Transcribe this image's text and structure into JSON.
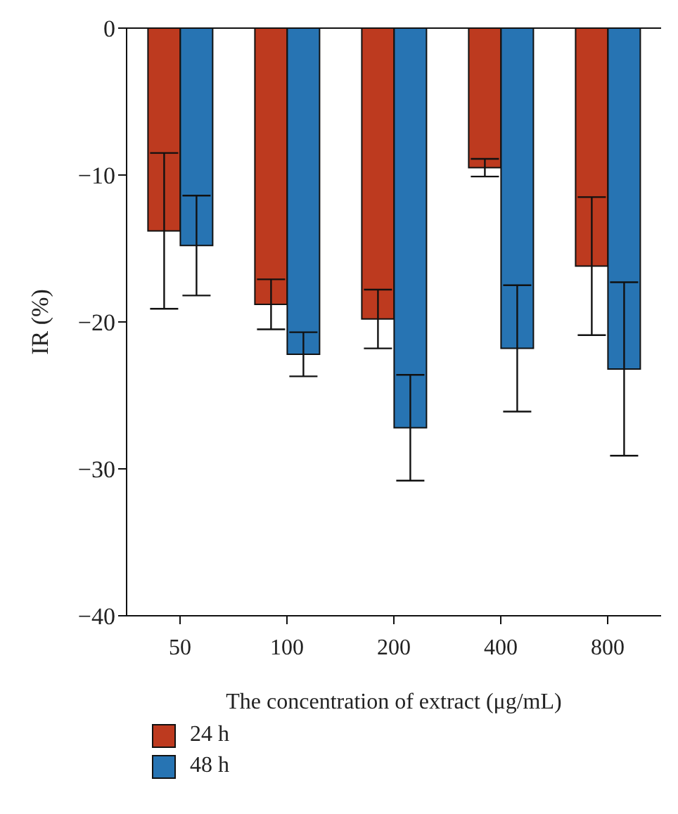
{
  "chart_data": {
    "type": "bar",
    "xlabel": "The concentration of extract (μg/mL)",
    "ylabel": "IR (%)",
    "categories": [
      "50",
      "100",
      "200",
      "400",
      "800"
    ],
    "series": [
      {
        "name": "24 h",
        "color": "#bd3a1f",
        "values": [
          -13.8,
          -18.8,
          -19.8,
          -9.5,
          -16.2
        ],
        "errors": [
          5.3,
          1.7,
          2.0,
          0.6,
          4.7
        ]
      },
      {
        "name": "48 h",
        "color": "#2774b3",
        "values": [
          -14.8,
          -22.2,
          -27.2,
          -21.8,
          -23.2
        ],
        "errors": [
          3.4,
          1.5,
          3.6,
          4.3,
          5.9
        ]
      }
    ],
    "ylim": [
      -40,
      0
    ],
    "yticks": [
      -40,
      -30,
      -20,
      -10,
      0
    ],
    "grid": false,
    "legend": "bottom left"
  }
}
